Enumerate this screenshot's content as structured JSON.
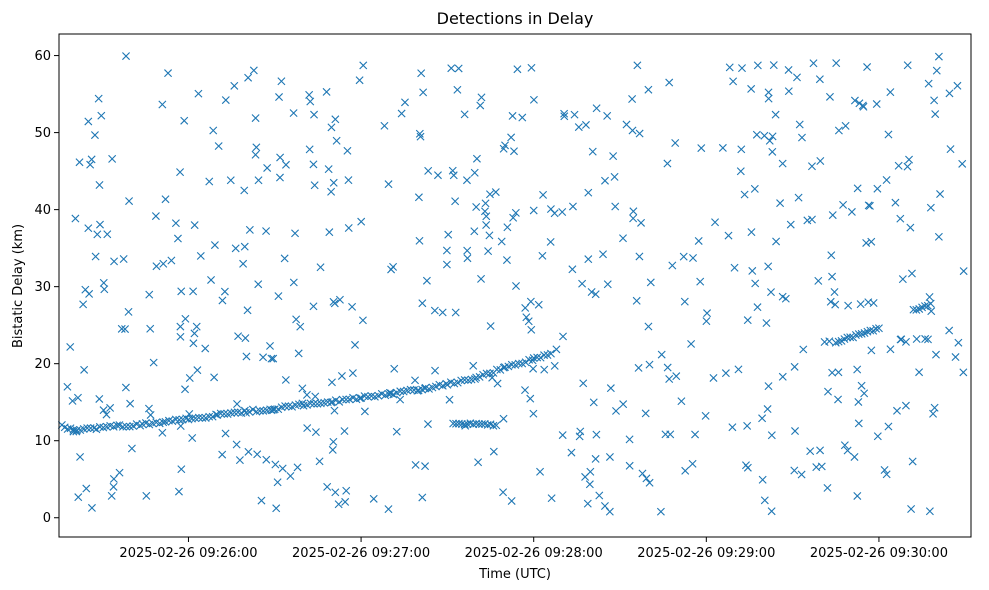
{
  "chart_data": {
    "type": "scatter",
    "title": "Detections in Delay",
    "xlabel": "Time (UTC)",
    "ylabel": "Bistatic Delay (km)",
    "marker": "x",
    "color": "#1f77b4",
    "grid": false,
    "x_unit": "datetime (UTC)",
    "xlim": [
      "2025-02-26 09:25:15",
      "2025-02-26 09:30:32"
    ],
    "ylim": [
      -2.5,
      62.8
    ],
    "x_ticks": [
      "2025-02-26 09:26:00",
      "2025-02-26 09:27:00",
      "2025-02-26 09:28:00",
      "2025-02-26 09:29:00",
      "2025-02-26 09:30:00"
    ],
    "y_ticks": [
      0,
      10,
      20,
      30,
      40,
      50,
      60
    ],
    "track_main": {
      "points": [
        [
          "2025-02-26 09:25:20",
          11.5
        ],
        [
          "2025-02-26 09:25:28",
          11.6
        ],
        [
          "2025-02-26 09:25:36",
          11.9
        ],
        [
          "2025-02-26 09:25:44",
          12.1
        ],
        [
          "2025-02-26 09:25:52",
          12.5
        ],
        [
          "2025-02-26 09:26:00",
          12.8
        ],
        [
          "2025-02-26 09:26:10",
          13.3
        ],
        [
          "2025-02-26 09:26:20",
          13.8
        ],
        [
          "2025-02-26 09:26:30",
          14.2
        ],
        [
          "2025-02-26 09:26:40",
          14.7
        ],
        [
          "2025-02-26 09:26:50",
          15.1
        ],
        [
          "2025-02-26 09:27:00",
          15.6
        ],
        [
          "2025-02-26 09:27:10",
          16.1
        ],
        [
          "2025-02-26 09:27:20",
          16.6
        ],
        [
          "2025-02-26 09:27:30",
          17.4
        ],
        [
          "2025-02-26 09:27:40",
          18.2
        ],
        [
          "2025-02-26 09:27:50",
          19.5
        ],
        [
          "2025-02-26 09:28:00",
          20.6
        ],
        [
          "2025-02-26 09:28:06",
          21.3
        ]
      ],
      "step_seconds": 1.2
    },
    "track_late": {
      "points": [
        [
          "2025-02-26 09:29:45",
          22.8
        ],
        [
          "2025-02-26 09:30:00",
          24.6
        ]
      ],
      "step_seconds": 1.0
    },
    "track_end": {
      "points": [
        [
          "2025-02-26 09:30:12",
          26.9
        ],
        [
          "2025-02-26 09:30:18",
          27.8
        ]
      ],
      "step_seconds": 1.0
    },
    "track_short": {
      "points": [
        [
          "2025-02-26 09:27:32",
          12.3
        ],
        [
          "2025-02-26 09:27:47",
          12.0
        ]
      ],
      "step_seconds": 1.0
    },
    "track_start": {
      "points": [
        [
          "2025-02-26 09:25:16",
          12.0
        ],
        [
          "2025-02-26 09:25:21",
          11.2
        ]
      ],
      "step_seconds": 1.0
    },
    "scatter_noise": {
      "count": 560,
      "x_range": [
        "2025-02-26 09:25:17",
        "2025-02-26 09:30:30"
      ],
      "y_range": [
        0.5,
        60
      ],
      "seed": 20250226
    }
  }
}
